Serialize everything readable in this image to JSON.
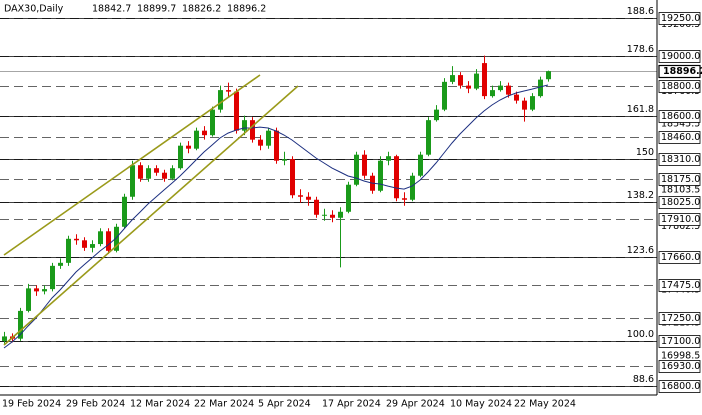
{
  "chart_data": {
    "type": "candlestick",
    "title": "DAX30,Daily",
    "categories": [
      "19 Feb 2024",
      null,
      null,
      null,
      null,
      null,
      null,
      null,
      "29 Feb 2024",
      null,
      null,
      null,
      null,
      null,
      null,
      null,
      "12 Mar 2024",
      null,
      null,
      null,
      null,
      null,
      null,
      null,
      "22 Mar 2024",
      null,
      null,
      null,
      null,
      null,
      null,
      null,
      "5 Apr 2024",
      null,
      null,
      null,
      null,
      null,
      null,
      null,
      "17 Apr 2024",
      null,
      null,
      null,
      null,
      null,
      null,
      null,
      "29 Apr 2024",
      null,
      null,
      null,
      null,
      null,
      null,
      null,
      "10 May 2024",
      null,
      null,
      null,
      null,
      null,
      null,
      null,
      "22 May 2024",
      null,
      null,
      null,
      null
    ],
    "open": [
      17100,
      17130,
      17115,
      17300,
      17450,
      17430,
      17445,
      17600,
      17620,
      17780,
      17770,
      17720,
      17745,
      17830,
      17700,
      17860,
      18060,
      18270,
      18180,
      18250,
      18220,
      18180,
      18250,
      18400,
      18380,
      18500,
      18470,
      18640,
      18770,
      18760,
      18500,
      18570,
      18440,
      18400,
      18500,
      18300,
      18310,
      18070,
      18060,
      18040,
      17940,
      17940,
      17920,
      17960,
      18140,
      18340,
      18200,
      18100,
      18300,
      18330,
      18050,
      18040,
      18200,
      18340,
      18570,
      18640,
      18825,
      18870,
      18800,
      18780,
      18950,
      18730,
      18770,
      18800,
      18740,
      18700,
      18640,
      18730,
      18842.7
    ],
    "high": [
      17160,
      17150,
      17320,
      17480,
      17470,
      17470,
      17620,
      17650,
      17800,
      17810,
      17790,
      17770,
      17850,
      17850,
      17880,
      18080,
      18300,
      18290,
      18270,
      18270,
      18240,
      18270,
      18420,
      18430,
      18520,
      18530,
      18660,
      18800,
      18820,
      18780,
      18600,
      18590,
      18470,
      18520,
      18520,
      18360,
      18330,
      18110,
      18090,
      18060,
      17980,
      17970,
      17990,
      18160,
      18360,
      18370,
      18220,
      18330,
      18360,
      18340,
      18090,
      18220,
      18360,
      18590,
      18670,
      18850,
      18930,
      18890,
      18830,
      18910,
      19000,
      18800,
      18830,
      18820,
      18760,
      18720,
      18750,
      18860,
      18899.7
    ],
    "low": [
      17080,
      17090,
      17100,
      17290,
      17400,
      17410,
      17430,
      17580,
      17600,
      17740,
      17700,
      17690,
      17730,
      17680,
      17690,
      17850,
      18040,
      18160,
      18160,
      18200,
      18160,
      18170,
      18240,
      18350,
      18370,
      18440,
      18460,
      18620,
      18720,
      18480,
      18470,
      18420,
      18370,
      18380,
      18280,
      18270,
      18050,
      18020,
      18000,
      17920,
      17900,
      17890,
      17590,
      17950,
      18130,
      18180,
      18080,
      18090,
      18270,
      18030,
      18000,
      18030,
      18190,
      18330,
      18560,
      18630,
      18810,
      18780,
      18750,
      18770,
      18710,
      18720,
      18760,
      18720,
      18680,
      18560,
      18630,
      18720,
      18826.2
    ],
    "close": [
      17130,
      17115,
      17300,
      17450,
      17430,
      17445,
      17600,
      17620,
      17780,
      17770,
      17720,
      17745,
      17830,
      17700,
      17860,
      18060,
      18270,
      18180,
      18250,
      18220,
      18180,
      18250,
      18400,
      18380,
      18500,
      18470,
      18640,
      18770,
      18760,
      18500,
      18570,
      18440,
      18400,
      18500,
      18300,
      18310,
      18070,
      18060,
      18040,
      17940,
      17940,
      17920,
      17960,
      18140,
      18340,
      18200,
      18100,
      18300,
      18330,
      18050,
      18040,
      18200,
      18340,
      18570,
      18640,
      18825,
      18870,
      18800,
      18780,
      18880,
      18730,
      18770,
      18800,
      18740,
      18700,
      18640,
      18730,
      18840,
      18896.2
    ],
    "up_color": "#1a9a1a",
    "down_color": "#e00000",
    "moving_average": {
      "color": "#1c2f80",
      "values": [
        17053,
        17093,
        17140,
        17199,
        17253,
        17319,
        17386,
        17439,
        17499,
        17559,
        17606,
        17652,
        17699,
        17739,
        17785,
        17845,
        17905,
        17958,
        18012,
        18058,
        18105,
        18151,
        18198,
        18251,
        18305,
        18358,
        18404,
        18451,
        18484,
        18504,
        18518,
        18518,
        18524,
        18518,
        18498,
        18471,
        18438,
        18398,
        18358,
        18318,
        18285,
        18251,
        18225,
        18198,
        18185,
        18165,
        18151,
        18145,
        18131,
        18118,
        18111,
        18131,
        18171,
        18225,
        18285,
        18351,
        18418,
        18478,
        18531,
        18584,
        18631,
        18671,
        18704,
        18731,
        18751,
        18764,
        18777,
        18791,
        18804
      ]
    },
    "ylim": [
      16740,
      19370
    ],
    "yticks": [
      {
        "value": 19250,
        "label": "19250.0"
      },
      {
        "value": 19000,
        "label": "19000.0"
      },
      {
        "value": 18800,
        "label": "18800.0"
      },
      {
        "value": 18600,
        "label": "18600.0"
      },
      {
        "value": 18460,
        "label": "18460.0"
      },
      {
        "value": 18310,
        "label": "18310.0"
      },
      {
        "value": 18175,
        "label": "18175.0"
      },
      {
        "value": 18025,
        "label": "18025.0"
      },
      {
        "value": 17910,
        "label": "17910.0"
      },
      {
        "value": 17660,
        "label": "17660.0"
      },
      {
        "value": 17475,
        "label": "17475.0"
      },
      {
        "value": 17250,
        "label": "17250.0"
      },
      {
        "value": 17100,
        "label": "17100.0"
      },
      {
        "value": 16930,
        "label": "16930.0"
      },
      {
        "value": 16800,
        "label": "16800.0"
      }
    ],
    "minor_yticks": [
      19206.5,
      18760.5,
      18545.5,
      18103.5,
      17862.5,
      17440.5,
      17219.5,
      16998.5,
      16777.5
    ],
    "fib_levels": [
      {
        "value": 19250,
        "label": "188.6"
      },
      {
        "value": 19000,
        "label": "178.6"
      },
      {
        "value": 18600,
        "label": "161.8"
      },
      {
        "value": 18310,
        "label": "150"
      },
      {
        "value": 18025,
        "label": "138.2"
      },
      {
        "value": 17660,
        "label": "123.6"
      },
      {
        "value": 17100,
        "label": "100.0"
      },
      {
        "value": 16800,
        "label": "88.6"
      }
    ]
  }
}
